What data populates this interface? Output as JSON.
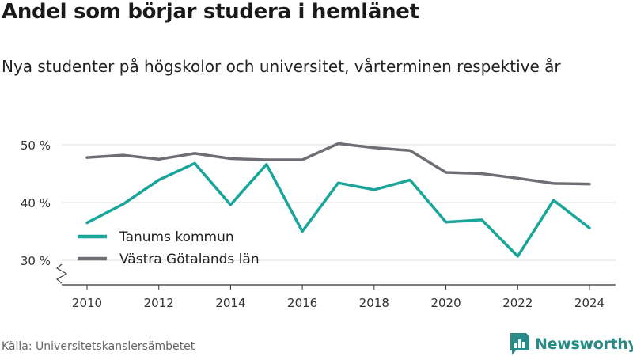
{
  "title": "Andel som börjar studera i hemlänet",
  "subtitle": "Nya studenter på högskolor och universitet, vårterminen respektive år",
  "source": "Källa: Universitetskanslersämbetet",
  "brand": {
    "name": "Newsworthy",
    "icon": "bar-chart-logo-icon",
    "color": "#2a8a88"
  },
  "chart_data": {
    "type": "line",
    "x": [
      2010,
      2011,
      2012,
      2013,
      2014,
      2015,
      2016,
      2017,
      2018,
      2019,
      2020,
      2021,
      2022,
      2023,
      2024
    ],
    "series": [
      {
        "name": "Tanums kommun",
        "color": "#1aa59a",
        "values": [
          36.5,
          39.7,
          43.9,
          46.8,
          39.6,
          46.6,
          35.0,
          43.4,
          42.2,
          43.9,
          36.6,
          37.0,
          30.7,
          40.4,
          35.6
        ]
      },
      {
        "name": "Västra Götalands län",
        "color": "#6f6e75",
        "values": [
          47.8,
          48.2,
          47.5,
          48.5,
          47.6,
          47.4,
          47.4,
          50.2,
          49.5,
          49.0,
          45.2,
          45.0,
          44.2,
          43.3,
          43.2
        ]
      }
    ],
    "xticks": [
      "2010",
      "2012",
      "2014",
      "2016",
      "2018",
      "2020",
      "2022",
      "2024"
    ],
    "yticks": [
      {
        "value": 30,
        "label": "30 %"
      },
      {
        "value": 40,
        "label": "40 %"
      },
      {
        "value": 50,
        "label": "50 %"
      }
    ],
    "ylim": [
      30,
      50
    ],
    "grid": true,
    "legend": "bottom-left",
    "axis_break": true
  }
}
